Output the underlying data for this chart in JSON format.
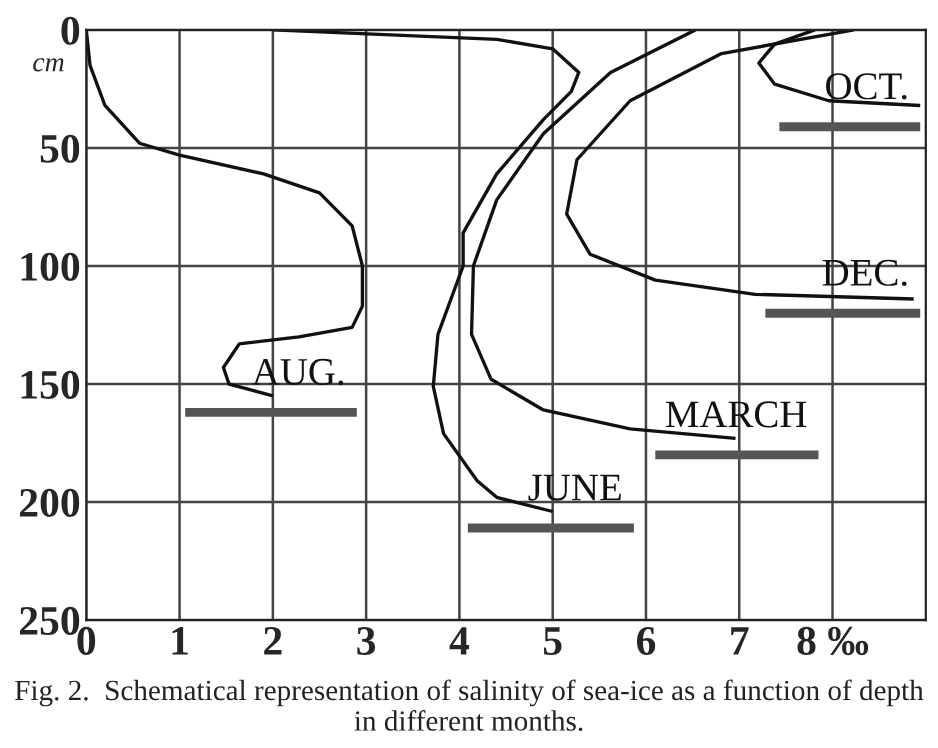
{
  "chart_data": {
    "type": "line",
    "ylabel": "cm",
    "xlim": [
      0,
      9
    ],
    "ylim": [
      250,
      0
    ],
    "xticks": [
      0,
      1,
      2,
      3,
      4,
      5,
      6,
      7,
      {
        "value": 8,
        "label": "8 ‰"
      }
    ],
    "yticks": [
      0,
      50,
      100,
      150,
      200,
      250
    ],
    "grid": true,
    "legend": false,
    "marker": "none",
    "line_style": "solid",
    "series": [
      {
        "color": "#111111",
        "x": [
          0,
          0.04,
          0.2,
          0.57,
          1.0,
          1.9,
          2.5,
          2.85,
          2.96,
          2.96,
          2.85,
          2.28,
          1.64,
          1.47,
          1.53,
          2.0
        ],
        "values": [
          0,
          15,
          32,
          48,
          53,
          61,
          69,
          83,
          100,
          117,
          126,
          130,
          133,
          143,
          150,
          155
        ]
      },
      {
        "color": "#111111",
        "x": [
          2.0,
          4.4,
          5.0,
          5.28,
          5.2,
          4.9,
          4.4,
          4.04,
          4.04,
          3.77,
          3.72,
          3.83,
          4.19,
          4.4,
          5.0
        ],
        "values": [
          0,
          4,
          8,
          18,
          26,
          38,
          61,
          86,
          100,
          129,
          151,
          171,
          191,
          198,
          204
        ]
      },
      {
        "color": "#111111",
        "x": [
          6.53,
          5.62,
          4.9,
          4.4,
          4.15,
          4.13,
          4.34,
          4.9,
          5.83,
          6.96
        ],
        "values": [
          0,
          18,
          44,
          72,
          100,
          129,
          148,
          161,
          169,
          173
        ]
      },
      {
        "color": "#111111",
        "x": [
          8.23,
          6.81,
          5.83,
          5.26,
          5.15,
          5.4,
          6.1,
          7.17,
          8.87
        ],
        "values": [
          0,
          10,
          30,
          55,
          78,
          95,
          106,
          112,
          114
        ]
      },
      {
        "color": "#111111",
        "x": [
          8.94,
          7.96,
          7.38,
          7.21,
          7.38,
          7.81
        ],
        "values": [
          32,
          30,
          23,
          14,
          6,
          0
        ]
      },
      {
        "name": "AUG.",
        "color": "#555555",
        "x": [
          1.06,
          2.9
        ],
        "values": [
          162,
          162
        ]
      },
      {
        "name": "JUNE",
        "color": "#555555",
        "x": [
          4.09,
          5.87
        ],
        "values": [
          211,
          211
        ]
      },
      {
        "name": "MARCH",
        "color": "#555555",
        "x": [
          6.1,
          7.85
        ],
        "values": [
          180,
          180
        ]
      },
      {
        "name": "DEC.",
        "color": "#555555",
        "x": [
          7.28,
          8.94
        ],
        "values": [
          120,
          120
        ]
      },
      {
        "name": "OCT.",
        "color": "#555555",
        "x": [
          7.43,
          8.94
        ],
        "values": [
          41,
          41
        ]
      }
    ],
    "annotations": [
      "Fig. 2.  Schematical representation of salinity of sea-ice as a function of depth in different months."
    ]
  }
}
